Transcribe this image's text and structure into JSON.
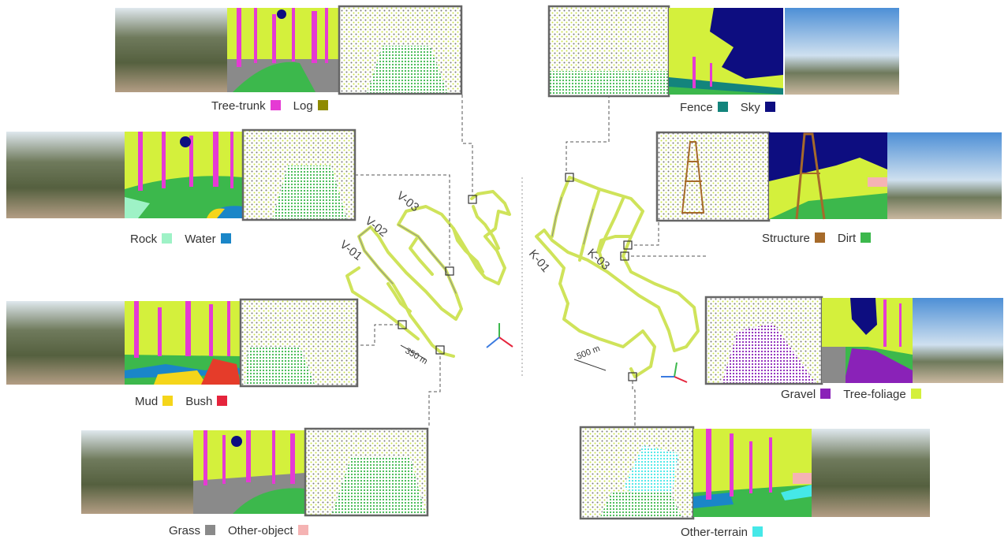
{
  "colors": {
    "tree_trunk": "#e53ad4",
    "log": "#8f8a00",
    "rock": "#9ef2c6",
    "water": "#1a86c8",
    "mud": "#f5d51a",
    "bush": "#e5243c",
    "grass": "#8a8a8a",
    "other_object": "#f5b3b3",
    "fence": "#13847c",
    "sky": "#0d0d80",
    "structure": "#a66a2a",
    "dirt": "#3cb84c",
    "gravel": "#8a22b8",
    "tree_foliage": "#d4f03c",
    "other_terrain": "#45e8e8",
    "trajectory": "#cfe35a",
    "photo_ground": "#b8a48c",
    "photo_sky": "#bcd4ec"
  },
  "legend": {
    "tree_trunk": "Tree-trunk",
    "log": "Log",
    "rock": "Rock",
    "water": "Water",
    "mud": "Mud",
    "bush": "Bush",
    "grass": "Grass",
    "other_object": "Other-object",
    "fence": "Fence",
    "sky": "Sky",
    "structure": "Structure",
    "dirt": "Dirt",
    "gravel": "Gravel",
    "tree_foliage": "Tree-foliage",
    "other_terrain": "Other-terrain"
  },
  "map_labels": {
    "v01": "V-01",
    "v02": "V-02",
    "v03": "V-03",
    "k01": "K-01",
    "k03": "K-03",
    "scale_left": "350 m",
    "scale_right": "500 m"
  }
}
